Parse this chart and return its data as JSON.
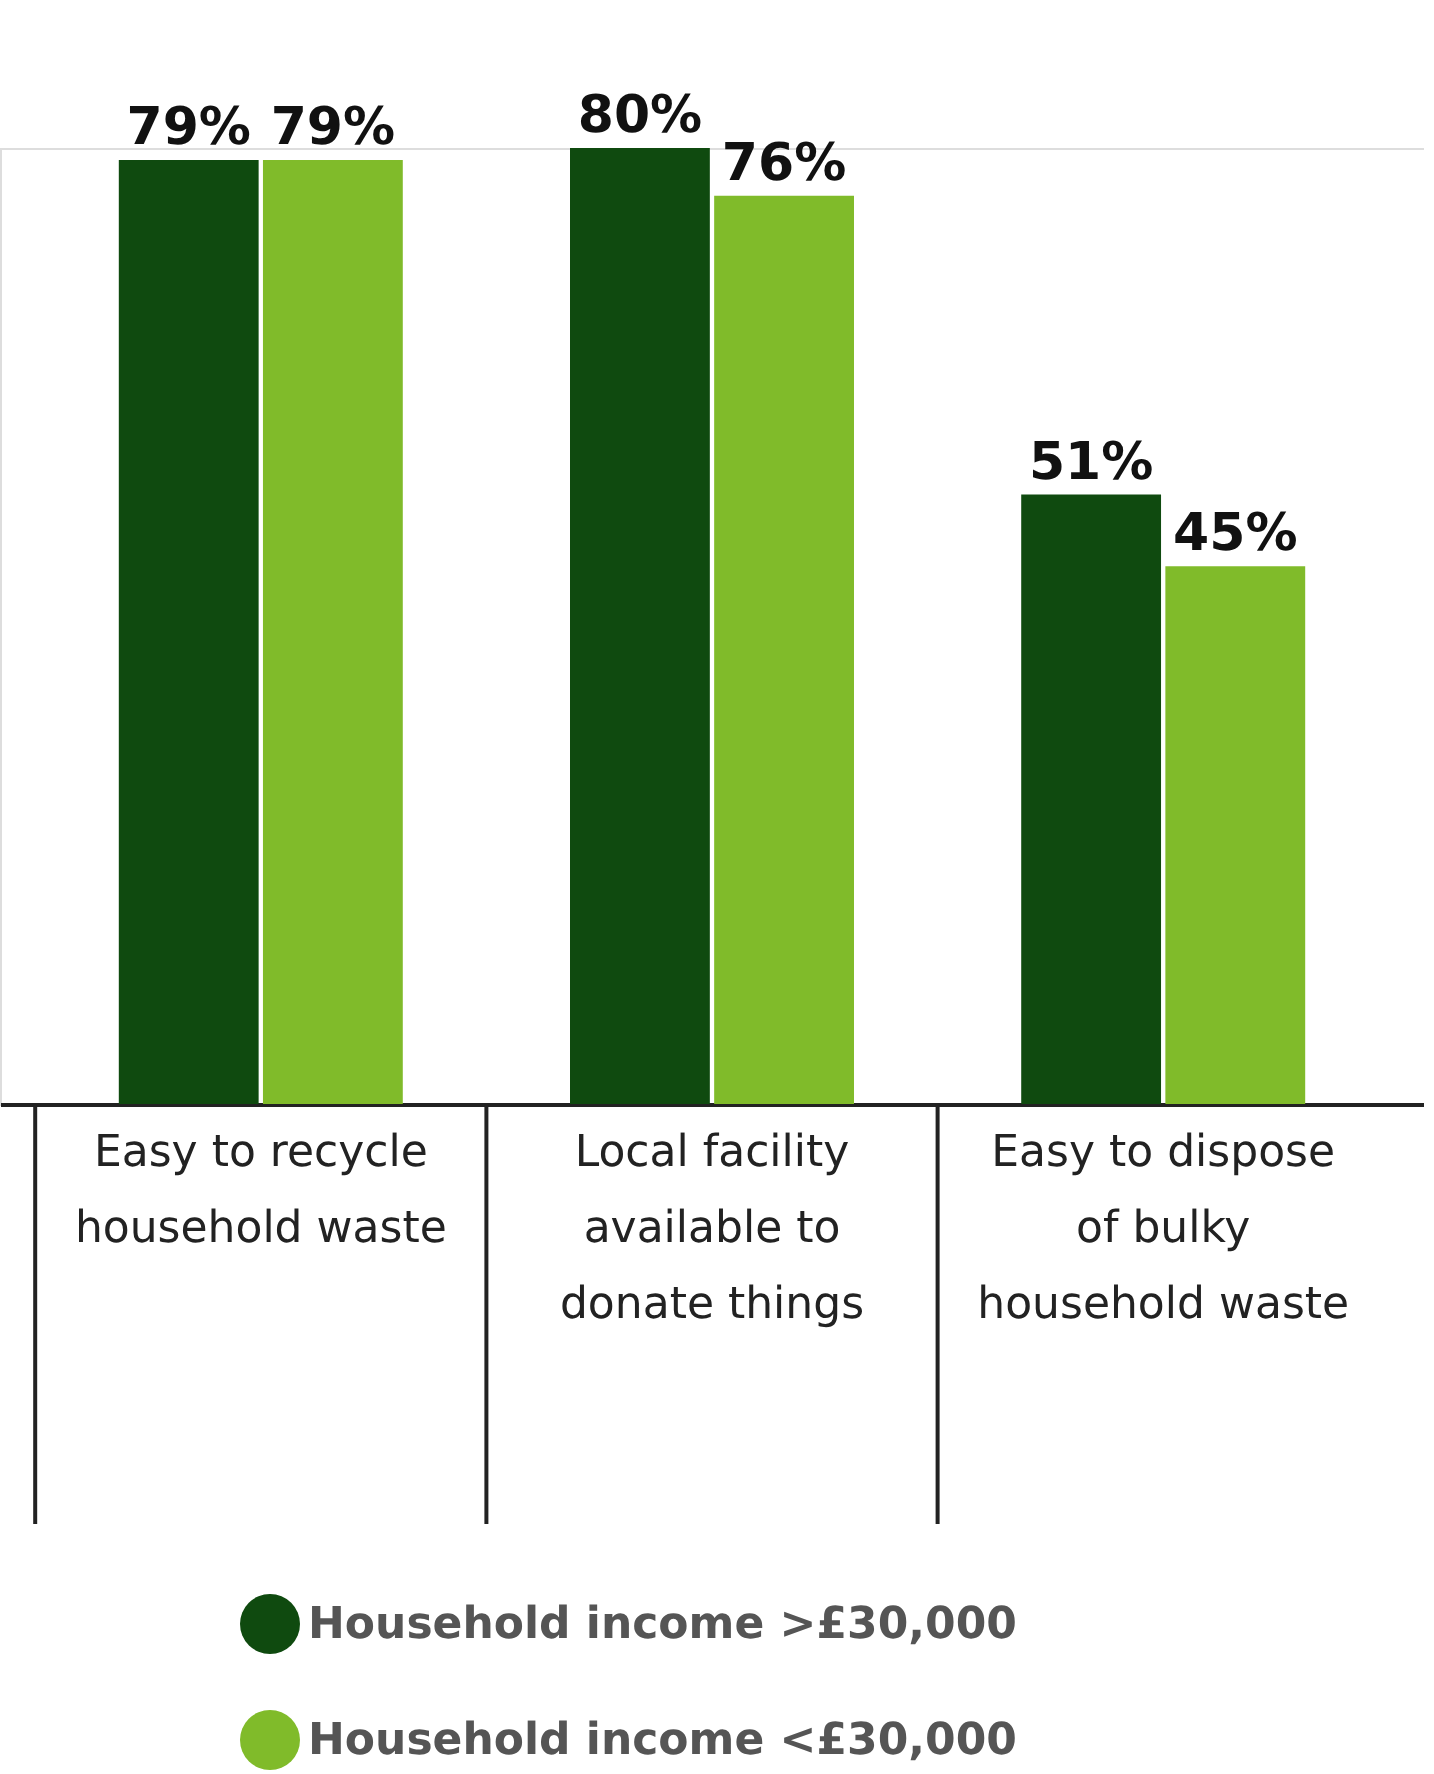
{
  "chart_data": {
    "type": "bar",
    "categories": [
      "Easy to recycle household waste",
      "Local facility available to donate things",
      "Easy to dispose of bulky household waste"
    ],
    "series": [
      {
        "name": "Household income >£30,000",
        "color": "#0f4a0f",
        "values": [
          79,
          80,
          51
        ],
        "value_labels": [
          "79%",
          "80%",
          "51%"
        ]
      },
      {
        "name": "Household income <£30,000",
        "color": "#80bb2a",
        "values": [
          79,
          76,
          45
        ],
        "value_labels": [
          "79%",
          "76%",
          "45%"
        ]
      }
    ],
    "legend": "bottom",
    "grid": false
  }
}
